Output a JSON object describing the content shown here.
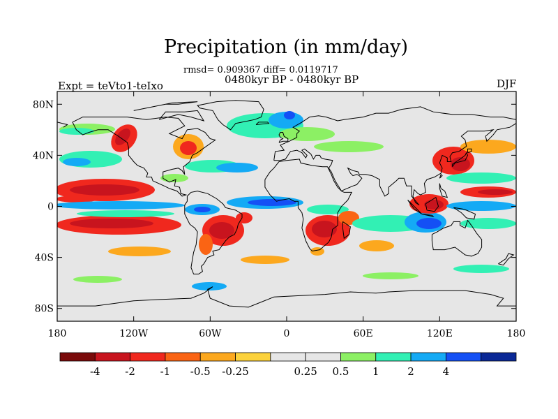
{
  "title": "Precipitation (in mm/day)",
  "stats": "rmsd= 0.909367 diff= 0.0119717",
  "subtitle": "0480kyr BP - 0480kyr BP",
  "experiment": "Expt = teVto1-teIxo",
  "season": "DJF",
  "map": {
    "projection": "cylindrical-equidistant",
    "lon_range": [
      -180,
      180
    ],
    "lat_range": [
      -90,
      90
    ],
    "y_ticks": [
      {
        "lat": 80,
        "label": "80N"
      },
      {
        "lat": 40,
        "label": "40N"
      },
      {
        "lat": 0,
        "label": "0"
      },
      {
        "lat": -40,
        "label": "40S"
      },
      {
        "lat": -80,
        "label": "80S"
      }
    ],
    "x_ticks": [
      {
        "lon": -180,
        "label": "180"
      },
      {
        "lon": -120,
        "label": "120W"
      },
      {
        "lon": -60,
        "label": "60W"
      },
      {
        "lon": 0,
        "label": "0"
      },
      {
        "lon": 60,
        "label": "60E"
      },
      {
        "lon": 120,
        "label": "120E"
      },
      {
        "lon": 180,
        "label": "180"
      }
    ],
    "background_color": "#e6e6e6",
    "coastline_color": "#000000"
  },
  "colorbar": {
    "colors": [
      "#7a0a0a",
      "#c8141e",
      "#f0281e",
      "#fa6414",
      "#fca81e",
      "#fcd23c",
      "#e6e6e6",
      "#e6e6e6",
      "#8cf064",
      "#32f0b4",
      "#14aaf5",
      "#1450f5",
      "#0a2896"
    ],
    "labels": [
      {
        "after": 1,
        "text": "-4"
      },
      {
        "after": 2,
        "text": "-2"
      },
      {
        "after": 3,
        "text": "-1"
      },
      {
        "after": 4,
        "text": "-0.5"
      },
      {
        "after": 5,
        "text": "-0.25"
      },
      {
        "after": 7,
        "text": "0.25"
      },
      {
        "after": 8,
        "text": "0.5"
      },
      {
        "after": 9,
        "text": "1"
      },
      {
        "after": 10,
        "text": "2"
      },
      {
        "after": 11,
        "text": "4"
      }
    ]
  }
}
